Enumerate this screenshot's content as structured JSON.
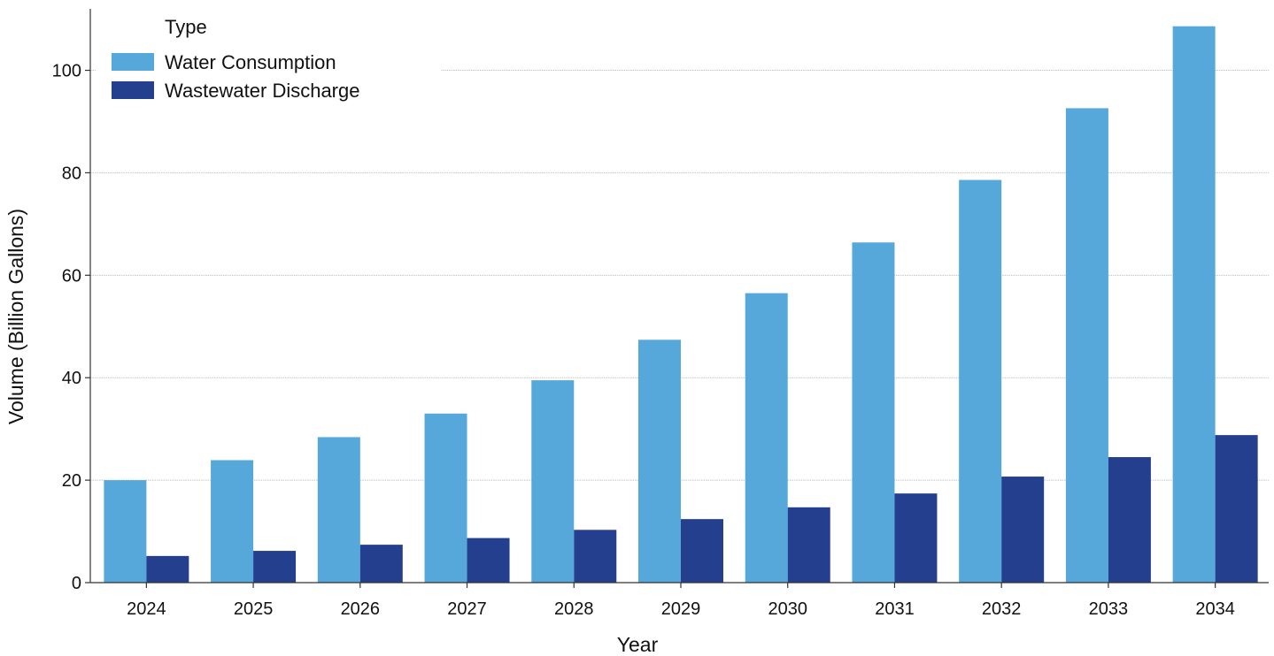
{
  "chart_data": {
    "type": "bar",
    "title": "",
    "xlabel": "Year",
    "ylabel": "Volume (Billion Gallons)",
    "categories": [
      "2024",
      "2025",
      "2026",
      "2027",
      "2028",
      "2029",
      "2030",
      "2031",
      "2032",
      "2033",
      "2034"
    ],
    "series": [
      {
        "name": "Water Consumption",
        "color": "#56a8da",
        "values": [
          20.0,
          23.9,
          28.4,
          33.0,
          39.5,
          47.4,
          56.5,
          66.4,
          78.6,
          92.6,
          108.6
        ]
      },
      {
        "name": "Wastewater Discharge",
        "color": "#253f8f",
        "values": [
          5.2,
          6.2,
          7.4,
          8.7,
          10.3,
          12.4,
          14.7,
          17.4,
          20.7,
          24.5,
          28.8
        ]
      }
    ],
    "ylim": [
      0,
      112
    ],
    "yticks": [
      0,
      20,
      40,
      60,
      80,
      100
    ],
    "grid": true,
    "legend": {
      "title": "Type",
      "position": "top-left"
    }
  }
}
